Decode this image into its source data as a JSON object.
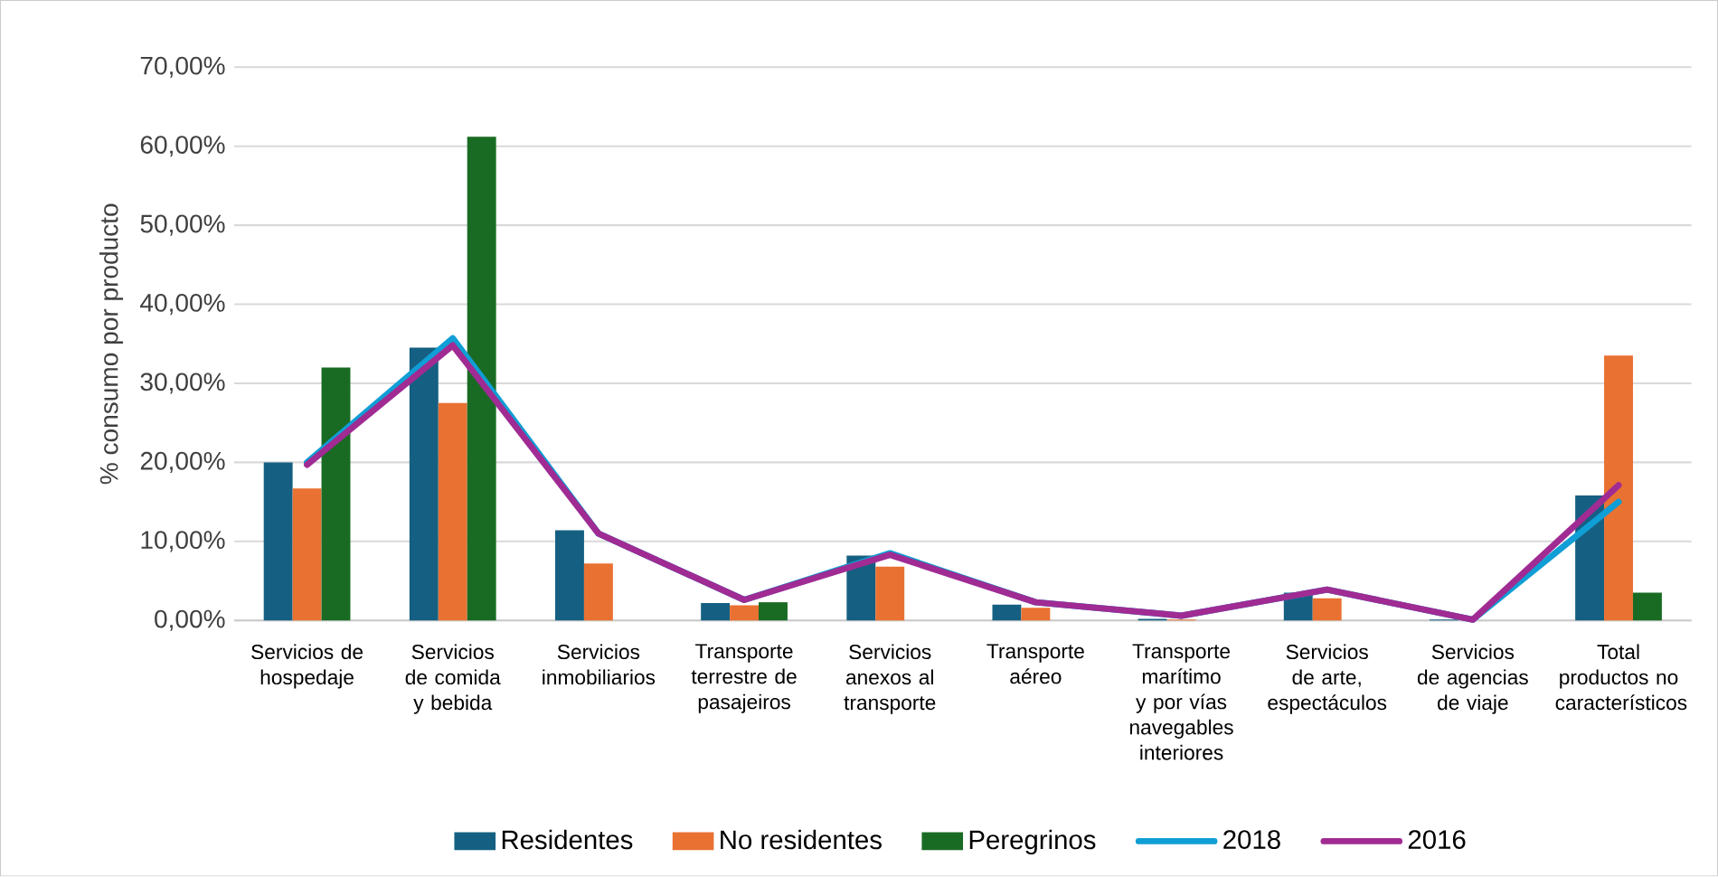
{
  "chart_data": {
    "type": "bar",
    "ylabel": "% consumo por producto",
    "categories": [
      "Servicios de hospedaje",
      "Servicios de comida y bebida",
      "Servicios inmobiliarios",
      "Transporte terrestre de pasajeiros",
      "Servicios anexos al transporte",
      "Transporte aéreo",
      "Transporte marítimo y por vías navegables interiores",
      "Servicios de arte, espectáculos",
      "Servicios de agencias de viaje",
      "Total productos no característicos"
    ],
    "series": [
      {
        "name": "Residentes",
        "color": "#156082",
        "values": [
          20.0,
          34.5,
          11.4,
          2.2,
          8.2,
          2.0,
          0.2,
          3.5,
          0.1,
          15.8
        ]
      },
      {
        "name": "No residentes",
        "color": "#e97132",
        "values": [
          16.7,
          27.5,
          7.2,
          1.9,
          6.8,
          1.6,
          0.1,
          2.8,
          null,
          33.5
        ]
      },
      {
        "name": "Peregrinos",
        "color": "#196b24",
        "values": [
          32.0,
          61.2,
          0,
          2.3,
          0,
          0,
          0,
          0,
          0,
          3.5
        ]
      },
      {
        "name": "2018",
        "type": "line",
        "color": "#0f9ed5",
        "values": [
          20.0,
          35.7,
          11.0,
          2.6,
          8.5,
          2.3,
          0.6,
          3.9,
          0.1,
          15.0
        ]
      },
      {
        "name": "2016",
        "type": "line",
        "color": "#a02b93",
        "values": [
          19.7,
          34.8,
          11.0,
          2.6,
          8.3,
          2.3,
          0.6,
          3.9,
          0.1,
          17.1
        ]
      }
    ],
    "ylim": [
      0,
      70
    ],
    "yticks": [
      {
        "value": 0,
        "label": "0,00%"
      },
      {
        "value": 10,
        "label": "10,00%"
      },
      {
        "value": 20,
        "label": "20,00%"
      },
      {
        "value": 30,
        "label": "30,00%"
      },
      {
        "value": 40,
        "label": "40,00%"
      },
      {
        "value": 50,
        "label": "50,00%"
      },
      {
        "value": 60,
        "label": "60,00%"
      },
      {
        "value": 70,
        "label": "70,00%"
      }
    ],
    "grid": "y",
    "legend": "bottom"
  }
}
